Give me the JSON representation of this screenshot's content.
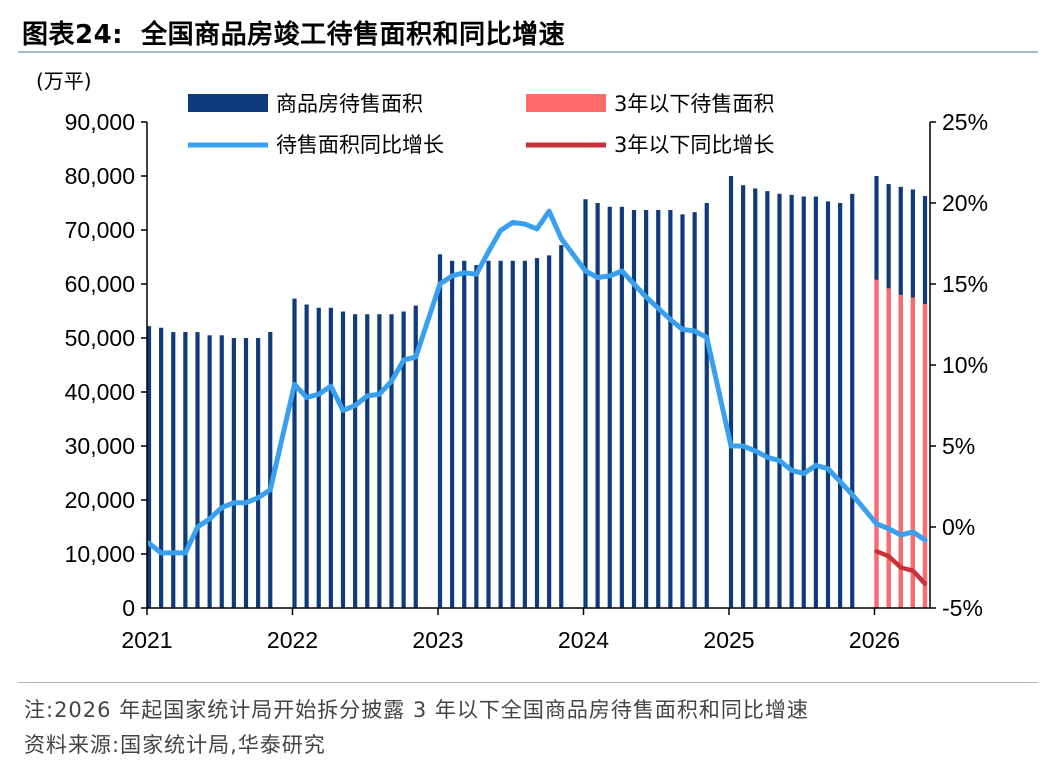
{
  "title": {
    "label": "图表24:",
    "text": "全国商品房竣工待售面积和同比增速"
  },
  "note": "注:2026 年起国家统计局开始拆分披露 3 年以下全国商品房待售面积和同比增速",
  "source": "资料来源:国家统计局,华泰研究",
  "colors": {
    "bar_total": "#0f3b7a",
    "bar_3yr": "#ff6b6b",
    "line_total": "#39a0f0",
    "line_3yr": "#c8303a"
  },
  "chart_data": {
    "type": "bar",
    "left_unit": "(万平)",
    "x_tick_labels": [
      "2021",
      "2022",
      "2023",
      "2024",
      "2025",
      "2026"
    ],
    "left_axis": {
      "min": 0,
      "max": 90000,
      "step": 10000,
      "tick_labels": [
        "0",
        "10,000",
        "20,000",
        "30,000",
        "40,000",
        "50,000",
        "60,000",
        "70,000",
        "80,000",
        "90,000"
      ]
    },
    "right_axis": {
      "min": -5,
      "max": 25,
      "step": 5,
      "tick_labels": [
        "-5%",
        "0%",
        "5%",
        "10%",
        "15%",
        "20%",
        "25%"
      ]
    },
    "legend": {
      "bar_total": "商品房待售面积",
      "bar_3yr": "3年以下待售面积",
      "line_total": "待售面积同比增长",
      "line_3yr": "3年以下同比增长"
    },
    "legend_position": "top",
    "series": [
      {
        "name": "商品房待售面积",
        "type": "bar",
        "axis": "left",
        "x": [
          "2021-01",
          "2021-02",
          "2021-03",
          "2021-04",
          "2021-05",
          "2021-06",
          "2021-07",
          "2021-08",
          "2021-09",
          "2021-10",
          "2021-11",
          "2022-01",
          "2022-02",
          "2022-03",
          "2022-04",
          "2022-05",
          "2022-06",
          "2022-07",
          "2022-08",
          "2022-09",
          "2022-10",
          "2022-11",
          "2023-01",
          "2023-02",
          "2023-03",
          "2023-04",
          "2023-05",
          "2023-06",
          "2023-07",
          "2023-08",
          "2023-09",
          "2023-10",
          "2023-11",
          "2024-01",
          "2024-02",
          "2024-03",
          "2024-04",
          "2024-05",
          "2024-06",
          "2024-07",
          "2024-08",
          "2024-09",
          "2024-10",
          "2024-11",
          "2025-01",
          "2025-02",
          "2025-03",
          "2025-04",
          "2025-05",
          "2025-06",
          "2025-07",
          "2025-08",
          "2025-09",
          "2025-10",
          "2025-11",
          "2026-01",
          "2026-02",
          "2026-03",
          "2026-04",
          "2026-05"
        ],
        "values": [
          52200,
          51900,
          51100,
          51100,
          51100,
          50500,
          50500,
          50000,
          50000,
          50000,
          51100,
          57300,
          56200,
          55600,
          55600,
          54900,
          54400,
          54400,
          54400,
          54400,
          54900,
          56000,
          65500,
          64300,
          64300,
          63500,
          64300,
          64300,
          64300,
          64300,
          64800,
          65300,
          67200,
          75700,
          75000,
          74300,
          74300,
          73700,
          73700,
          73700,
          73700,
          72900,
          73300,
          75000,
          80000,
          78300,
          77700,
          77200,
          76700,
          76500,
          76200,
          76200,
          75300,
          75000,
          76700,
          80000,
          78500,
          78000,
          77500,
          76300
        ]
      },
      {
        "name": "3年以下待售面积",
        "type": "bar",
        "axis": "left",
        "x": [
          "2026-01",
          "2026-02",
          "2026-03",
          "2026-04",
          "2026-05"
        ],
        "values": [
          60800,
          59200,
          58000,
          57500,
          56300
        ]
      },
      {
        "name": "待售面积同比增长",
        "type": "line",
        "axis": "right",
        "x": [
          "2021-01",
          "2021-02",
          "2021-03",
          "2021-04",
          "2021-05",
          "2021-06",
          "2021-07",
          "2021-08",
          "2021-09",
          "2021-10",
          "2021-11",
          "2022-01",
          "2022-02",
          "2022-03",
          "2022-04",
          "2022-05",
          "2022-06",
          "2022-07",
          "2022-08",
          "2022-09",
          "2022-10",
          "2022-11",
          "2023-01",
          "2023-02",
          "2023-03",
          "2023-04",
          "2023-05",
          "2023-06",
          "2023-07",
          "2023-08",
          "2023-09",
          "2023-10",
          "2023-11",
          "2024-01",
          "2024-02",
          "2024-03",
          "2024-04",
          "2024-05",
          "2024-06",
          "2024-07",
          "2024-08",
          "2024-09",
          "2024-10",
          "2024-11",
          "2025-01",
          "2025-02",
          "2025-03",
          "2025-04",
          "2025-05",
          "2025-06",
          "2025-07",
          "2025-08",
          "2025-09",
          "2025-10",
          "2025-11",
          "2026-01",
          "2026-02",
          "2026-03",
          "2026-04",
          "2026-05"
        ],
        "values": [
          -1.0,
          -1.6,
          -1.6,
          -1.6,
          0.0,
          0.5,
          1.2,
          1.5,
          1.5,
          1.8,
          2.3,
          8.8,
          8.0,
          8.2,
          8.7,
          7.2,
          7.5,
          8.1,
          8.2,
          9.0,
          10.3,
          10.5,
          15.0,
          15.5,
          15.7,
          15.6,
          17.0,
          18.3,
          18.8,
          18.7,
          18.4,
          19.5,
          17.8,
          15.8,
          15.4,
          15.5,
          15.8,
          15.0,
          14.2,
          13.5,
          12.8,
          12.2,
          12.1,
          11.7,
          5.0,
          5.0,
          4.7,
          4.3,
          4.1,
          3.5,
          3.3,
          3.8,
          3.6,
          2.8,
          2.0,
          0.2,
          -0.1,
          -0.5,
          -0.3,
          -0.8
        ]
      },
      {
        "name": "3年以下同比增长",
        "type": "line",
        "axis": "right",
        "x": [
          "2026-01",
          "2026-02",
          "2026-03",
          "2026-04",
          "2026-05"
        ],
        "values": [
          -1.5,
          -1.8,
          -2.5,
          -2.7,
          -3.5
        ]
      }
    ]
  }
}
